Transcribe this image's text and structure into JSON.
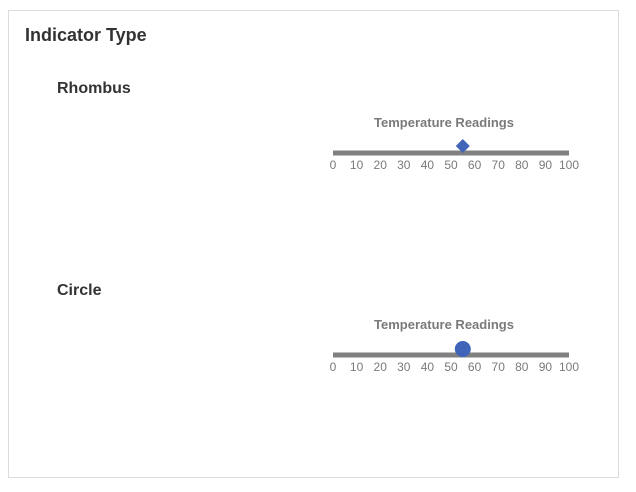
{
  "header": {
    "title": "Indicator Type"
  },
  "colors": {
    "track": "#808080",
    "indicator": "#3f64b8",
    "label": "#7a7a7a",
    "heading": "#333333"
  },
  "gauges": [
    {
      "section_title": "Rhombus",
      "title": "Temperature Readings",
      "indicator_shape": "rhombus",
      "value": 55,
      "min": 0,
      "max": 100,
      "ticks": [
        "0",
        "10",
        "20",
        "30",
        "40",
        "50",
        "60",
        "70",
        "80",
        "90",
        "100"
      ]
    },
    {
      "section_title": "Circle",
      "title": "Temperature Readings",
      "indicator_shape": "circle",
      "value": 55,
      "min": 0,
      "max": 100,
      "ticks": [
        "0",
        "10",
        "20",
        "30",
        "40",
        "50",
        "60",
        "70",
        "80",
        "90",
        "100"
      ]
    }
  ]
}
